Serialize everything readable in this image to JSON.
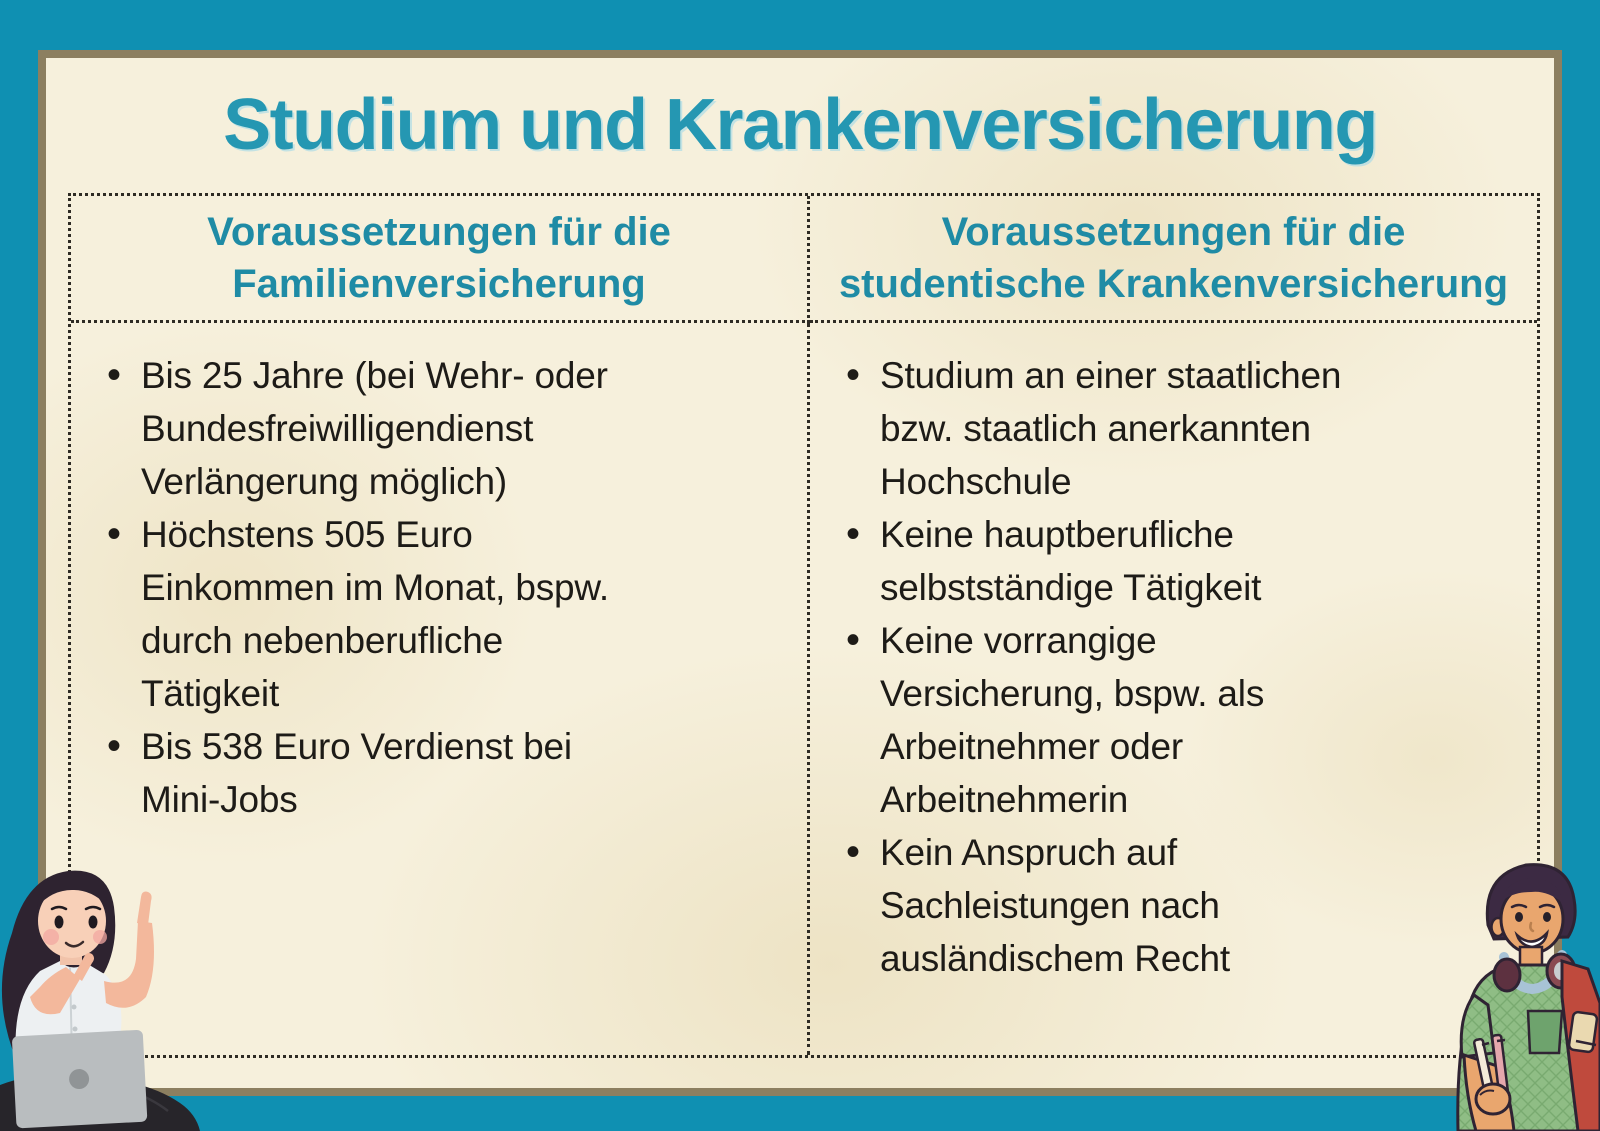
{
  "title": "Studium und Krankenversicherung",
  "table": {
    "columns": [
      {
        "header": "Voraussetzungen für die\nFamilienversicherung",
        "items": [
          "Bis 25 Jahre (bei Wehr- oder\nBundesfreiwilligendienst\nVerlängerung möglich)",
          "Höchstens 505 Euro\nEinkommen im Monat, bspw.\ndurch nebenberufliche\nTätigkeit",
          "Bis 538 Euro Verdienst bei\nMini-Jobs"
        ]
      },
      {
        "header": "Voraussetzungen für die\nstudentische Krankenversicherung",
        "items": [
          "Studium an einer staatlichen\nbzw. staatlich anerkannten\nHochschule",
          "Keine hauptberufliche\nselbstständige Tätigkeit",
          "Keine vorrangige\nVersicherung, bspw. als\nArbeitnehmer oder\nArbeitnehmerin",
          "Kein Anspruch auf\nSachleistungen nach\nausländischem Recht"
        ]
      }
    ]
  },
  "colors": {
    "background_teal": "#0f90b2",
    "frame_khaki": "#8c7f60",
    "paper_cream": "#f6f0dc",
    "title_teal": "#2597b2",
    "header_teal": "#1f8ba5",
    "body_text": "#1d1b17",
    "dotted_border": "#2e2b24"
  },
  "illustrations": {
    "left": "female-student-with-laptop-pointing",
    "right": "male-student-with-headphones-and-backpack"
  }
}
